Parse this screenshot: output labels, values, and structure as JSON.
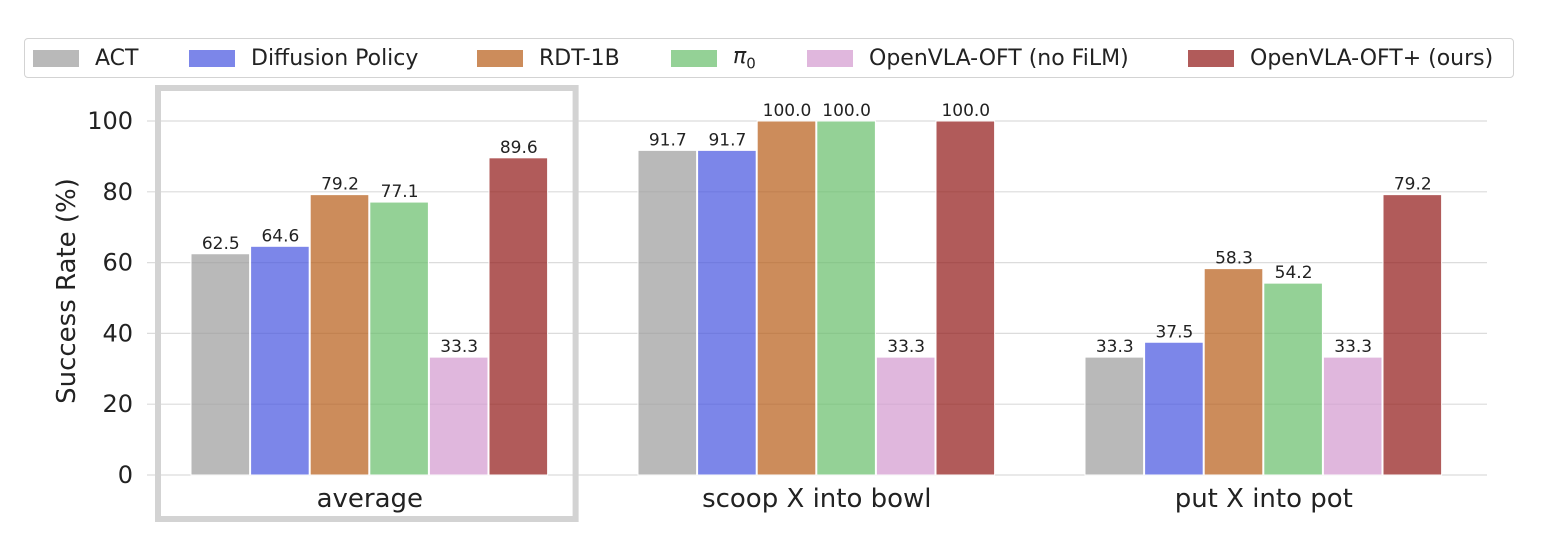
{
  "chart_data": {
    "type": "bar",
    "ylabel": "Success Rate (%)",
    "xlabel": "",
    "ylim": [
      0,
      110
    ],
    "yticks": [
      0,
      20,
      40,
      60,
      80,
      100
    ],
    "grid": true,
    "legend_position": "top",
    "highlighted_category": "average",
    "categories": [
      "average",
      "scoop X into bowl",
      "put X into pot"
    ],
    "series": [
      {
        "name": "ACT",
        "color": "#9e9e9e",
        "values": [
          62.5,
          91.7,
          33.3
        ],
        "labels": [
          "62.5",
          "91.7",
          "33.3"
        ]
      },
      {
        "name": "Diffusion Policy",
        "color": "#4a58e0",
        "values": [
          64.6,
          91.7,
          37.5
        ],
        "labels": [
          "64.6",
          "91.7",
          "37.5"
        ]
      },
      {
        "name": "RDT-1B",
        "color": "#b9601c",
        "values": [
          79.2,
          100.0,
          58.3
        ],
        "labels": [
          "79.2",
          "100.0",
          "58.3"
        ]
      },
      {
        "name": "π0",
        "color": "#6bbf6e",
        "values": [
          77.1,
          100.0,
          54.2
        ],
        "labels": [
          "77.1",
          "100.0",
          "54.2"
        ]
      },
      {
        "name": "OpenVLA-OFT (no FiLM)",
        "color": "#d49bd0",
        "values": [
          33.3,
          33.3,
          33.3
        ],
        "labels": [
          "33.3",
          "33.3",
          "33.3"
        ]
      },
      {
        "name": "OpenVLA-OFT+ (ours)",
        "color": "#931c1a",
        "values": [
          89.6,
          100.0,
          79.2
        ],
        "labels": [
          "89.6",
          "100.0",
          "79.2"
        ]
      }
    ]
  },
  "legend": {
    "items": [
      {
        "label": "ACT"
      },
      {
        "label": "Diffusion Policy"
      },
      {
        "label": "RDT-1B"
      },
      {
        "label_base": "π",
        "label_sub": "0"
      },
      {
        "label": "OpenVLA-OFT (no FiLM)"
      },
      {
        "label": "OpenVLA-OFT+ (ours)"
      }
    ]
  }
}
